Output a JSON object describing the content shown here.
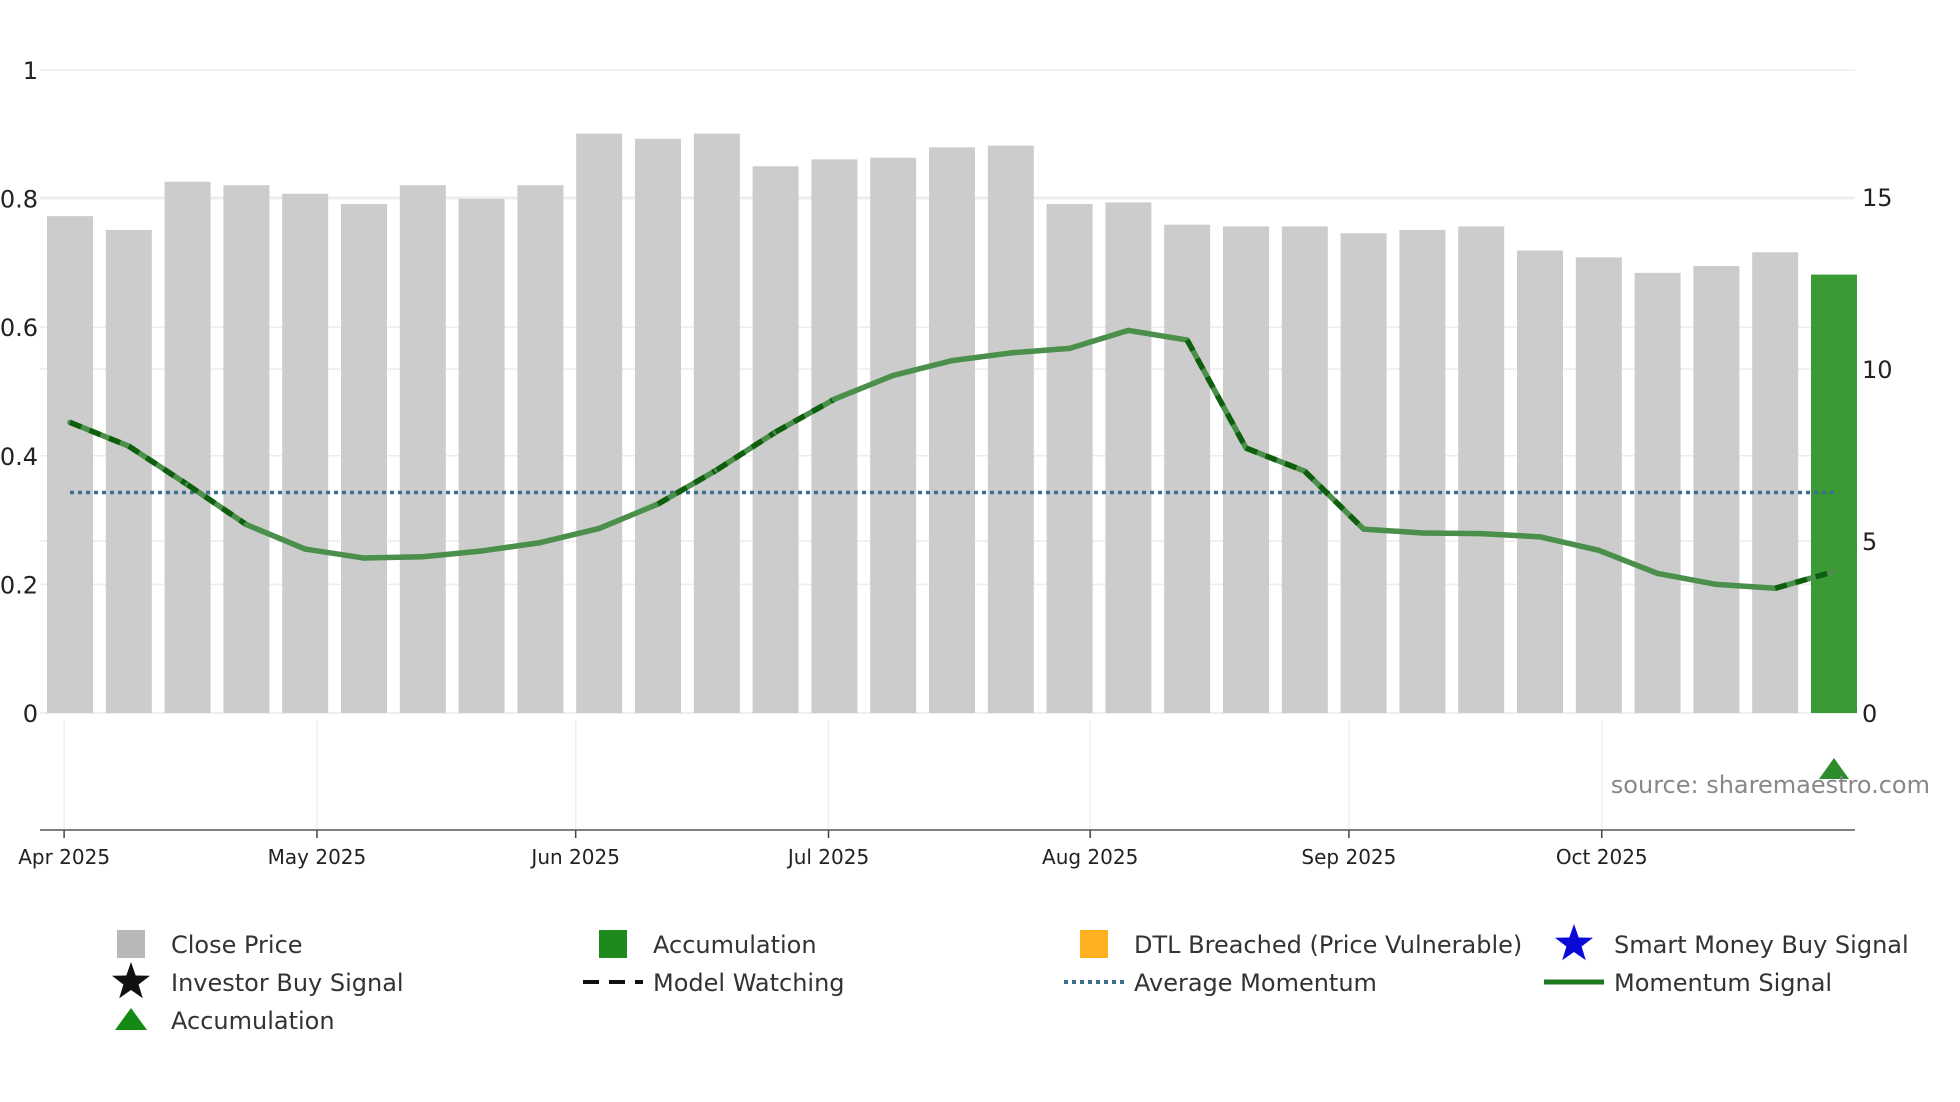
{
  "chart_data": {
    "type": "bar",
    "title": "",
    "source": "source: sharemaestro.com",
    "left_axis": {
      "ticks": [
        "0",
        "0.2",
        "0.4",
        "0.6",
        "0.8",
        "1"
      ],
      "ylim": [
        0,
        1
      ]
    },
    "right_axis": {
      "ticks": [
        "0",
        "5",
        "10",
        "15"
      ],
      "ylim": [
        0,
        18.7
      ]
    },
    "x_axis": {
      "ticks": [
        {
          "label": "Apr 2025",
          "week": -0.1
        },
        {
          "label": "May 2025",
          "week": 4.2
        },
        {
          "label": "Jun 2025",
          "week": 8.6
        },
        {
          "label": "Jul 2025",
          "week": 12.9
        },
        {
          "label": "Aug 2025",
          "week": 17.35
        },
        {
          "label": "Sep 2025",
          "week": 21.75
        },
        {
          "label": "Oct 2025",
          "week": 26.05
        }
      ]
    },
    "colors": {
      "close": "#cccccc",
      "accumulation": "#3a9a34",
      "momentum": "#2e7d32",
      "average": "#3d6f8f",
      "marker": "#2e8b2e"
    },
    "series": [
      {
        "name": "Close Price",
        "axis": "right",
        "values": [
          14.45,
          14.05,
          15.45,
          15.35,
          15.1,
          14.8,
          15.35,
          14.95,
          15.35,
          16.85,
          16.7,
          16.85,
          15.9,
          16.1,
          16.15,
          16.45,
          16.5,
          14.8,
          14.85,
          14.2,
          14.15,
          14.15,
          13.95,
          14.05,
          14.15,
          13.45,
          13.25,
          12.8,
          13.0,
          13.4,
          12.75
        ],
        "highlight": {
          "index": 30,
          "label": "Accumulation"
        }
      },
      {
        "name": "Momentum Signal",
        "axis": "left",
        "values": [
          0.452,
          0.415,
          0.355,
          0.293,
          0.255,
          0.241,
          0.243,
          0.252,
          0.265,
          0.287,
          0.325,
          0.378,
          0.437,
          0.488,
          0.525,
          0.548,
          0.56,
          0.567,
          0.595,
          0.58,
          0.412,
          0.376,
          0.286,
          0.28,
          0.279,
          0.274,
          0.253,
          0.217,
          0.2,
          0.194,
          0.22
        ]
      },
      {
        "name": "Average Momentum",
        "axis": "left",
        "value": 0.343
      }
    ],
    "markers": [
      {
        "type": "triangle",
        "label": "Accumulation",
        "index": 30
      }
    ],
    "legend": [
      {
        "key": "close",
        "label": "Close Price",
        "symbol": "square-gray"
      },
      {
        "key": "accum",
        "label": "Accumulation",
        "symbol": "square-green"
      },
      {
        "key": "dtl",
        "label": "DTL Breached (Price Vulnerable)",
        "symbol": "square-orange"
      },
      {
        "key": "smart",
        "label": "Smart Money Buy Signal",
        "symbol": "star-blue"
      },
      {
        "key": "investor",
        "label": "Investor Buy Signal",
        "symbol": "star-black"
      },
      {
        "key": "watch",
        "label": "Model Watching",
        "symbol": "dash-black"
      },
      {
        "key": "avg",
        "label": "Average Momentum",
        "symbol": "dots-blue"
      },
      {
        "key": "momentum",
        "label": "Momentum Signal",
        "symbol": "line-green"
      },
      {
        "key": "accum-tri",
        "label": "Accumulation",
        "symbol": "triangle-green"
      }
    ]
  }
}
